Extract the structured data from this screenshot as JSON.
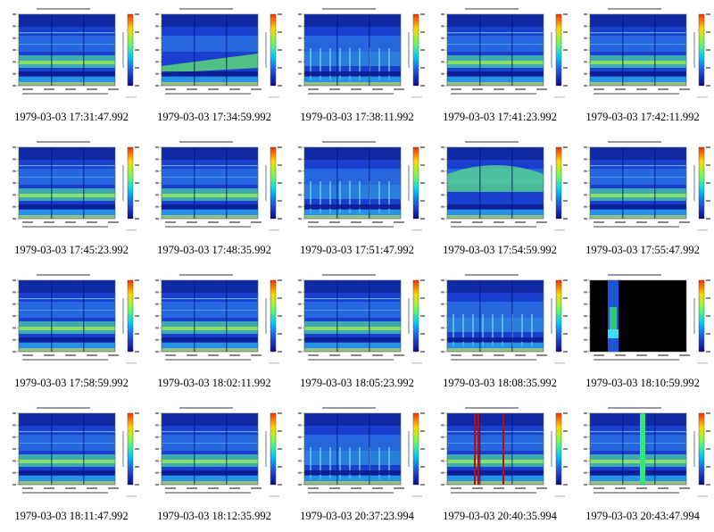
{
  "panels": [
    {
      "caption": "1979-03-03 17:31:47.992",
      "variant": "normal"
    },
    {
      "caption": "1979-03-03 17:34:59.992",
      "variant": "rising"
    },
    {
      "caption": "1979-03-03 17:38:11.992",
      "variant": "sparse"
    },
    {
      "caption": "1979-03-03 17:41:23.992",
      "variant": "bands"
    },
    {
      "caption": "1979-03-03 17:42:11.992",
      "variant": "bands"
    },
    {
      "caption": "1979-03-03 17:45:23.992",
      "variant": "normal"
    },
    {
      "caption": "1979-03-03 17:48:35.992",
      "variant": "normal"
    },
    {
      "caption": "1979-03-03 17:51:47.992",
      "variant": "sparse"
    },
    {
      "caption": "1979-03-03 17:54:59.992",
      "variant": "arch"
    },
    {
      "caption": "1979-03-03 17:55:47.992",
      "variant": "normal"
    },
    {
      "caption": "1979-03-03 17:58:59.992",
      "variant": "normal"
    },
    {
      "caption": "1979-03-03 18:02:11.992",
      "variant": "normal"
    },
    {
      "caption": "1979-03-03 18:05:23.992",
      "variant": "normal"
    },
    {
      "caption": "1979-03-03 18:08:35.992",
      "variant": "sparse"
    },
    {
      "caption": "1979-03-03 18:10:59.992",
      "variant": "black"
    },
    {
      "caption": "1979-03-03 18:11:47.992",
      "variant": "normal"
    },
    {
      "caption": "1979-03-03 18:12:35.992",
      "variant": "normal"
    },
    {
      "caption": "1979-03-03 20:37:23.994",
      "variant": "sparse"
    },
    {
      "caption": "1979-03-03 20:40:35.994",
      "variant": "bars"
    },
    {
      "caption": "1979-03-03 20:43:47.994",
      "variant": "greenbar"
    }
  ]
}
